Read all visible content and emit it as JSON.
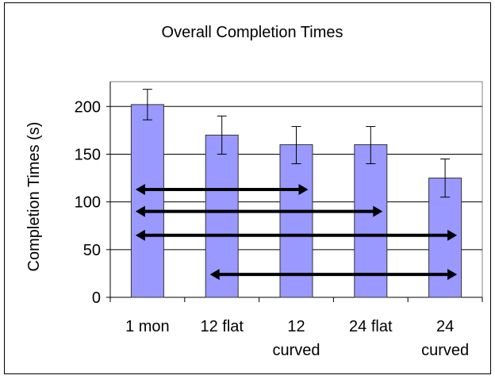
{
  "chart_data": {
    "type": "bar",
    "title": "Overall Completion Times",
    "xlabel": "",
    "ylabel": "Completion Times (s)",
    "ylim": [
      0,
      200
    ],
    "yticks": [
      0,
      50,
      100,
      150,
      200
    ],
    "grid": true,
    "categories": [
      [
        "1 mon"
      ],
      [
        "12 flat"
      ],
      [
        "12",
        "curved"
      ],
      [
        "24 flat"
      ],
      [
        "24",
        "curved"
      ]
    ],
    "values": [
      202,
      170,
      160,
      160,
      125
    ],
    "error_low": [
      186,
      150,
      140,
      140,
      105
    ],
    "error_high": [
      218,
      190,
      179,
      179,
      145
    ],
    "comparisons": [
      {
        "from": 0,
        "to": 2,
        "y": 113
      },
      {
        "from": 0,
        "to": 3,
        "y": 90
      },
      {
        "from": 0,
        "to": 4,
        "y": 65
      },
      {
        "from": 1,
        "to": 4,
        "y": 24
      }
    ],
    "colors": {
      "bar": "#9999ff",
      "bar_edge": "#333333",
      "plot_border": "#808080",
      "grid": "#000000",
      "arrow": "#000000"
    }
  }
}
